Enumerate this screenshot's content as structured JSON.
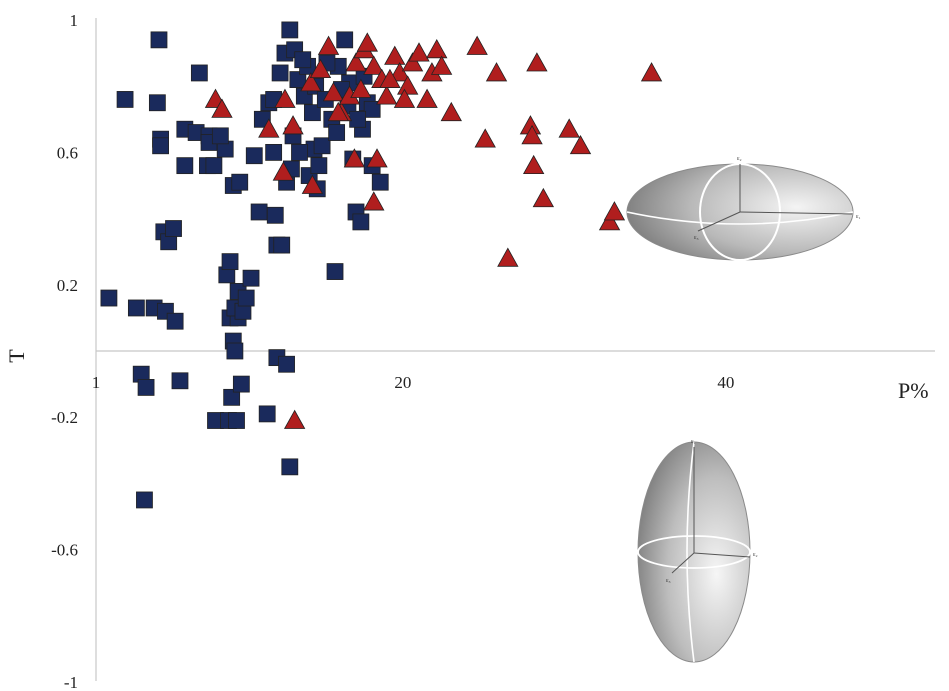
{
  "chart_data": {
    "type": "scatter",
    "title": "",
    "xlabel": "P%",
    "ylabel": "T",
    "xlim": [
      1,
      52
    ],
    "ylim": [
      -1,
      1
    ],
    "x_ticks": [
      {
        "value": 1,
        "label": "1"
      },
      {
        "value": 20,
        "label": "20"
      },
      {
        "value": 40,
        "label": "40"
      }
    ],
    "y_ticks": [
      {
        "value": 1,
        "label": "1"
      },
      {
        "value": 0.6,
        "label": "0.6"
      },
      {
        "value": 0.2,
        "label": "0.2"
      },
      {
        "value": -0.2,
        "label": "-0.2"
      },
      {
        "value": -0.6,
        "label": "-0.6"
      },
      {
        "value": -1,
        "label": "-1"
      }
    ],
    "grid": false,
    "legend": "none",
    "series": [
      {
        "marker": "square",
        "color": "#1a2a5c",
        "points": [
          [
            1.8,
            0.16
          ],
          [
            2.8,
            0.76
          ],
          [
            3.5,
            0.13
          ],
          [
            4.6,
            0.13
          ],
          [
            5.3,
            0.12
          ],
          [
            5.9,
            0.09
          ],
          [
            3.8,
            -0.07
          ],
          [
            4.1,
            -0.11
          ],
          [
            6.2,
            -0.09
          ],
          [
            4.0,
            -0.45
          ],
          [
            4.9,
            0.94
          ],
          [
            4.8,
            0.75
          ],
          [
            5.0,
            0.64
          ],
          [
            5.0,
            0.62
          ],
          [
            5.2,
            0.36
          ],
          [
            5.5,
            0.33
          ],
          [
            5.8,
            0.37
          ],
          [
            6.5,
            0.67
          ],
          [
            6.5,
            0.56
          ],
          [
            7.4,
            0.84
          ],
          [
            7.2,
            0.66
          ],
          [
            7.9,
            0.56
          ],
          [
            8.0,
            0.65
          ],
          [
            8.3,
            0.56
          ],
          [
            8.0,
            0.63
          ],
          [
            9.0,
            0.61
          ],
          [
            8.7,
            0.65
          ],
          [
            8.4,
            -0.21
          ],
          [
            9.3,
            0.1
          ],
          [
            9.8,
            0.1
          ],
          [
            9.5,
            0.03
          ],
          [
            9.6,
            0.0
          ],
          [
            9.1,
            0.23
          ],
          [
            9.3,
            0.27
          ],
          [
            9.6,
            0.13
          ],
          [
            9.8,
            0.18
          ],
          [
            9.5,
            0.5
          ],
          [
            9.9,
            0.51
          ],
          [
            9.4,
            -0.14
          ],
          [
            9.2,
            -0.21
          ],
          [
            9.7,
            -0.21
          ],
          [
            10.0,
            -0.1
          ],
          [
            10.1,
            0.12
          ],
          [
            10.3,
            0.16
          ],
          [
            10.6,
            0.22
          ],
          [
            10.8,
            0.59
          ],
          [
            11.1,
            0.42
          ],
          [
            11.7,
            0.75
          ],
          [
            11.3,
            0.7
          ],
          [
            12.0,
            0.6
          ],
          [
            12.1,
            0.41
          ],
          [
            12.2,
            0.32
          ],
          [
            12.5,
            0.32
          ],
          [
            12.8,
            0.51
          ],
          [
            13.1,
            0.55
          ],
          [
            13.2,
            0.65
          ],
          [
            12.7,
            0.9
          ],
          [
            13.0,
            0.97
          ],
          [
            13.5,
            0.82
          ],
          [
            13.9,
            0.77
          ],
          [
            14.1,
            0.86
          ],
          [
            14.4,
            0.72
          ],
          [
            14.5,
            0.61
          ],
          [
            14.2,
            0.53
          ],
          [
            14.7,
            0.49
          ],
          [
            15.0,
            0.62
          ],
          [
            15.6,
            0.7
          ],
          [
            15.9,
            0.66
          ],
          [
            16.0,
            0.86
          ],
          [
            16.4,
            0.94
          ],
          [
            16.7,
            0.81
          ],
          [
            16.9,
            0.58
          ],
          [
            17.1,
            0.42
          ],
          [
            17.4,
            0.39
          ],
          [
            17.5,
            0.67
          ],
          [
            17.8,
            0.75
          ],
          [
            18.1,
            0.56
          ],
          [
            18.6,
            0.51
          ],
          [
            15.8,
            0.24
          ],
          [
            12.2,
            -0.02
          ],
          [
            12.8,
            -0.04
          ],
          [
            11.6,
            -0.19
          ],
          [
            13.0,
            -0.35
          ],
          [
            12.0,
            0.76
          ],
          [
            12.4,
            0.84
          ],
          [
            13.3,
            0.91
          ],
          [
            13.8,
            0.88
          ],
          [
            14.6,
            0.8
          ],
          [
            15.2,
            0.76
          ],
          [
            15.3,
            0.87
          ],
          [
            16.2,
            0.79
          ],
          [
            17.6,
            0.83
          ],
          [
            18.1,
            0.73
          ],
          [
            13.6,
            0.6
          ],
          [
            14.8,
            0.56
          ],
          [
            16.6,
            0.74
          ],
          [
            17.2,
            0.7
          ]
        ]
      },
      {
        "marker": "triangle",
        "color": "#b01e1e",
        "points": [
          [
            8.4,
            0.76
          ],
          [
            8.8,
            0.73
          ],
          [
            11.7,
            0.67
          ],
          [
            12.7,
            0.76
          ],
          [
            13.2,
            0.68
          ],
          [
            12.6,
            0.54
          ],
          [
            14.4,
            0.5
          ],
          [
            13.3,
            -0.21
          ],
          [
            14.3,
            0.81
          ],
          [
            14.9,
            0.85
          ],
          [
            15.4,
            0.92
          ],
          [
            15.7,
            0.78
          ],
          [
            16.2,
            0.72
          ],
          [
            16.7,
            0.77
          ],
          [
            17.1,
            0.87
          ],
          [
            17.6,
            0.91
          ],
          [
            17.8,
            0.93
          ],
          [
            18.2,
            0.86
          ],
          [
            18.7,
            0.82
          ],
          [
            19.0,
            0.77
          ],
          [
            19.5,
            0.89
          ],
          [
            19.8,
            0.84
          ],
          [
            20.3,
            0.8
          ],
          [
            20.6,
            0.87
          ],
          [
            21.0,
            0.9
          ],
          [
            21.5,
            0.76
          ],
          [
            21.8,
            0.84
          ],
          [
            22.1,
            0.91
          ],
          [
            22.4,
            0.86
          ],
          [
            23.0,
            0.72
          ],
          [
            24.6,
            0.92
          ],
          [
            25.1,
            0.64
          ],
          [
            25.8,
            0.84
          ],
          [
            26.5,
            0.28
          ],
          [
            27.9,
            0.68
          ],
          [
            28.0,
            0.65
          ],
          [
            28.1,
            0.56
          ],
          [
            28.3,
            0.87
          ],
          [
            28.7,
            0.46
          ],
          [
            30.3,
            0.67
          ],
          [
            31.0,
            0.62
          ],
          [
            32.8,
            0.39
          ],
          [
            33.1,
            0.42
          ],
          [
            35.4,
            0.84
          ],
          [
            17.0,
            0.58
          ],
          [
            18.4,
            0.58
          ],
          [
            18.2,
            0.45
          ],
          [
            16.0,
            0.72
          ],
          [
            19.2,
            0.82
          ],
          [
            17.4,
            0.79
          ],
          [
            20.1,
            0.76
          ]
        ]
      }
    ]
  },
  "insets": [
    {
      "type": "oblate-ellipsoid",
      "axis_labels": [
        "ε₂",
        "ε₁",
        "ε₃"
      ]
    },
    {
      "type": "prolate-ellipsoid",
      "axis_labels": [
        "ε₁",
        "ε₂",
        "ε₃"
      ]
    }
  ]
}
